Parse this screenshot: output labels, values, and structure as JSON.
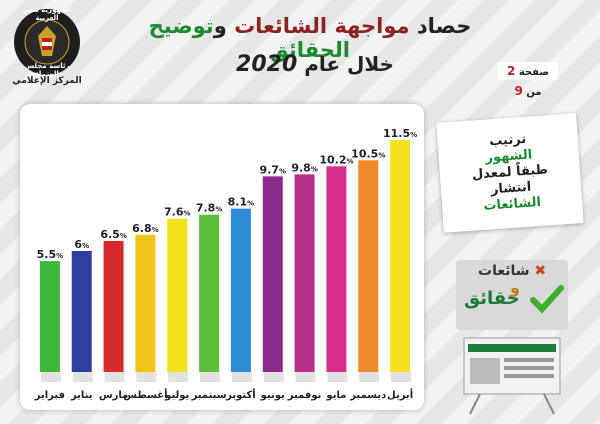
{
  "header": {
    "title_part1": "حصاد",
    "title_part2": "مواجهة الشائعات",
    "title_part3": "و",
    "title_part4": "توضيح الحقائق",
    "subtitle": "خلال عام",
    "year": "2020",
    "page_label": "صفحة",
    "page_current": "2",
    "page_sep": "من",
    "page_total": "9"
  },
  "logo": {
    "line1": "جمهورية مصر العربية",
    "line2": "رئاسة مجلس الوزراء",
    "line3": "المركز الإعلامي"
  },
  "side_note": {
    "line1": "ترتيب",
    "line2": "الشهور",
    "line3": "طبقاً لمعدل",
    "line4": "انتشار",
    "line5": "الشائعات"
  },
  "brand": {
    "label1": "شائعات",
    "and": "و",
    "label2": "حقائق"
  },
  "chart_data": {
    "type": "bar",
    "categories": [
      "فبراير",
      "يناير",
      "مارس",
      "أغسطس",
      "يوليو",
      "سبتمبر",
      "أكتوبر",
      "يونيو",
      "نوفمبر",
      "مايو",
      "ديسمبر",
      "أبريل"
    ],
    "values": [
      5.5,
      6,
      6.5,
      6.8,
      7.6,
      7.8,
      8.1,
      9.7,
      9.8,
      10.2,
      10.5,
      11.5
    ],
    "value_labels": [
      "5.5",
      "6",
      "6.5",
      "6.8",
      "7.6",
      "7.8",
      "8.1",
      "9.7",
      "9.8",
      "10.2",
      "10.5",
      "11.5"
    ],
    "unit": "%",
    "colors": [
      "#3cb83a",
      "#2c3f9e",
      "#d62b2b",
      "#f0c21a",
      "#f2e21a",
      "#5bbf3a",
      "#2a8bd8",
      "#8a2a8a",
      "#b8308c",
      "#d6308a",
      "#f08a28",
      "#f6e11e"
    ],
    "ylim": [
      0,
      12
    ],
    "title": "",
    "xlabel": "",
    "ylabel": ""
  },
  "colors": {
    "accent_red": "#8c2323",
    "accent_green": "#1c8a2e"
  }
}
